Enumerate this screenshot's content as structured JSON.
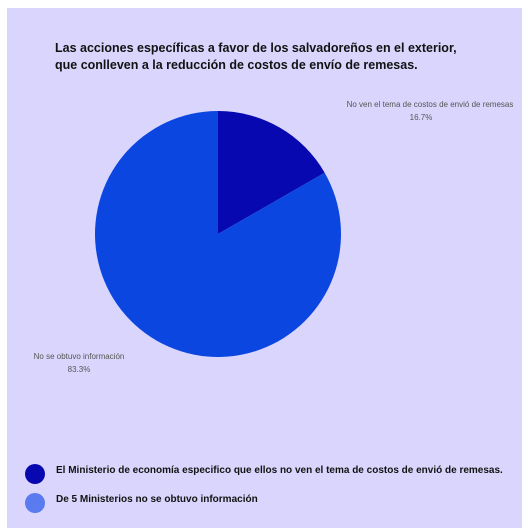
{
  "chart_data": {
    "type": "pie",
    "title_lines": [
      "Las acciones específicas a favor de los salvadoreños en el exterior,",
      "que conlleven a la reducción de costos de envío de remesas."
    ],
    "slices": [
      {
        "label": "No ven el tema de costos de envió de remesas",
        "value": 16.7,
        "display": "16.7%",
        "color": "#0808b0"
      },
      {
        "label": "No se obtuvo información",
        "value": 83.3,
        "display": "83.3%",
        "color": "#0c46e0"
      }
    ],
    "legend": [
      {
        "text": "El Ministerio de economía especifico que ellos no ven el tema de costos de envió de remesas.",
        "color": "#0808b0"
      },
      {
        "text": "De 5 Ministerios no se obtuvo información",
        "color": "#5a7af0"
      }
    ]
  }
}
